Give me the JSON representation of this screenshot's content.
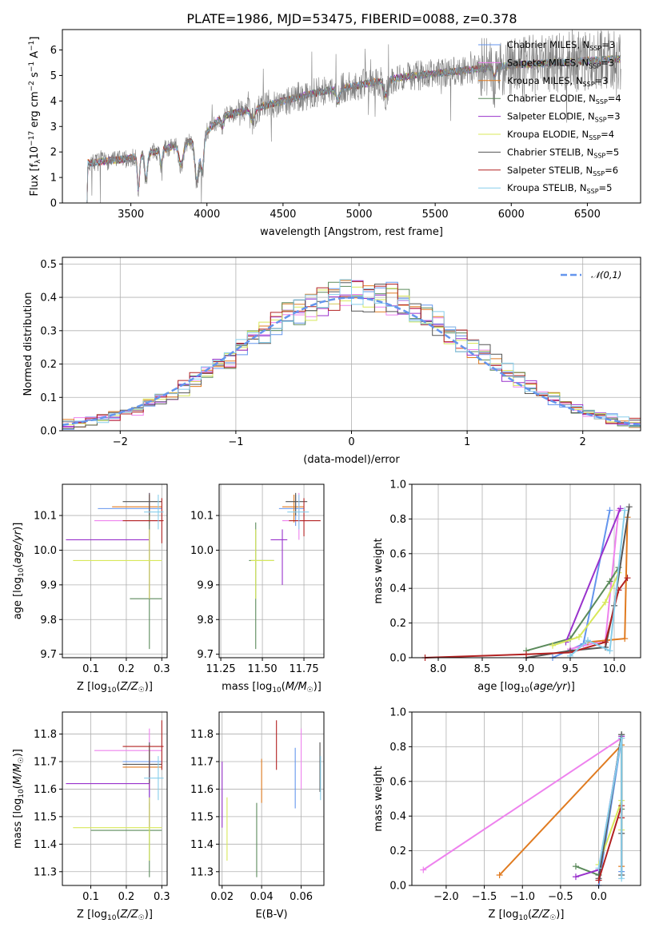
{
  "chart_data": [
    {
      "type": "line",
      "id": "spectrum",
      "title": "PLATE=1986, MJD=53475, FIBERID=0088, z=0.378",
      "xlabel": "wavelength [Angstrom, rest frame]",
      "ylabel": "Flux [f$_\\lambda$10$^{-17}$ erg cm$^{-2}$ s$^{-1}$ A$^{-1}$]",
      "ylabel_parts": [
        "Flux [f",
        "λ",
        "10",
        "−17",
        " erg cm",
        "−2",
        " s",
        "−1",
        " A",
        "−1",
        "]"
      ],
      "xlim": [
        3050,
        6850
      ],
      "ylim": [
        0,
        6.8
      ],
      "xticks": [
        3500,
        4000,
        4500,
        5000,
        5500,
        6000,
        6500
      ],
      "yticks": [
        0,
        1,
        2,
        3,
        4,
        5,
        6
      ],
      "grid": false,
      "legend_position": "top-right",
      "data_color": "#7f7f7f",
      "data_x_range": [
        3200,
        6720
      ],
      "series": [
        {
          "name": "Chabrier MILES, N$_{SSP}$=3",
          "label_main": "Chabrier MILES, N",
          "label_sub": "SSP",
          "label_tail": "=3",
          "color": "#6495ed"
        },
        {
          "name": "Salpeter MILES, N$_{SSP}$=3",
          "label_main": "Salpeter MILES, N",
          "label_sub": "SSP",
          "label_tail": "=3",
          "color": "#ee82ee"
        },
        {
          "name": "Kroupa MILES, N$_{SSP}$=3",
          "label_main": "Kroupa MILES, N",
          "label_sub": "SSP",
          "label_tail": "=3",
          "color": "#e07b20"
        },
        {
          "name": "Chabrier ELODIE, N$_{SSP}$=4",
          "label_main": "Chabrier ELODIE, N",
          "label_sub": "SSP",
          "label_tail": "=4",
          "color": "#5b8a5b"
        },
        {
          "name": "Salpeter ELODIE, N$_{SSP}$=3",
          "label_main": "Salpeter ELODIE, N",
          "label_sub": "SSP",
          "label_tail": "=3",
          "color": "#9932cc"
        },
        {
          "name": "Kroupa ELODIE, N$_{SSP}$=4",
          "label_main": "Kroupa ELODIE, N",
          "label_sub": "SSP",
          "label_tail": "=4",
          "color": "#d8e85a"
        },
        {
          "name": "Chabrier STELIB, N$_{SSP}$=5",
          "label_main": "Chabrier STELIB, N",
          "label_sub": "SSP",
          "label_tail": "=5",
          "color": "#555555"
        },
        {
          "name": "Salpeter STELIB, N$_{SSP}$=6",
          "label_main": "Salpeter STELIB, N",
          "label_sub": "SSP",
          "label_tail": "=6",
          "color": "#b22222"
        },
        {
          "name": "Kroupa STELIB, N$_{SSP}$=5",
          "label_main": "Kroupa STELIB, N",
          "label_sub": "SSP",
          "label_tail": "=5",
          "color": "#87ceeb"
        }
      ]
    },
    {
      "type": "histogram",
      "id": "residuals",
      "xlabel": "(data-model)/error",
      "ylabel": "Normed distribution",
      "xlim": [
        -2.5,
        2.5
      ],
      "ylim": [
        0,
        0.52
      ],
      "xticks": [
        -2,
        -1,
        0,
        1,
        2
      ],
      "xticklabels": [
        "−2",
        "−1",
        "0",
        "1",
        "2"
      ],
      "yticks": [
        0.0,
        0.1,
        0.2,
        0.3,
        0.4,
        0.5
      ],
      "yticklabels": [
        "0.0",
        "0.1",
        "0.2",
        "0.3",
        "0.4",
        "0.5"
      ],
      "grid": true,
      "bin_width": 0.1,
      "legend": {
        "label": "𝒩(0,1)",
        "position": "top-right",
        "style": "dashed",
        "color": "#6495ed"
      },
      "gaussian": {
        "mu": 0,
        "sigma": 1
      }
    },
    {
      "type": "scatter",
      "id": "z-age",
      "xlabel": "Z [log₁₀(Z/Z☉)]",
      "ylabel": "age  [log₁₀(age/yr)]",
      "xlim": [
        0.02,
        0.315
      ],
      "ylim": [
        9.69,
        10.19
      ],
      "xticks": [
        0.1,
        0.2,
        0.3
      ],
      "yticks": [
        9.7,
        9.8,
        9.9,
        10.0,
        10.1
      ],
      "yticklabels": [
        "9.7",
        "9.8",
        "9.9",
        "10.0",
        "10.1"
      ],
      "grid": true,
      "points": [
        {
          "color": "#6495ed",
          "x": 0.265,
          "xerr": [
            0.12,
            0.3
          ],
          "y": 10.12,
          "yerr": [
            10.07,
            10.16
          ]
        },
        {
          "color": "#ee82ee",
          "x": 0.265,
          "xerr": [
            0.11,
            0.3
          ],
          "y": 10.085,
          "yerr": [
            10.03,
            10.165
          ]
        },
        {
          "color": "#e07b20",
          "x": 0.265,
          "xerr": [
            0.16,
            0.3
          ],
          "y": 10.125,
          "yerr": [
            10.08,
            10.16
          ]
        },
        {
          "color": "#5b8a5b",
          "x": 0.265,
          "xerr": [
            0.21,
            0.3
          ],
          "y": 9.86,
          "yerr": [
            9.715,
            10.1
          ]
        },
        {
          "color": "#9932cc",
          "x": 0.265,
          "xerr": [
            0.03,
            0.265
          ],
          "y": 10.03,
          "yerr": [
            9.86,
            10.06
          ]
        },
        {
          "color": "#d8e85a",
          "x": 0.265,
          "xerr": [
            0.05,
            0.3
          ],
          "y": 9.97,
          "yerr": [
            9.86,
            10.06
          ]
        },
        {
          "color": "#555555",
          "x": 0.265,
          "xerr": [
            0.19,
            0.3
          ],
          "y": 10.14,
          "yerr": [
            10.1,
            10.165
          ]
        },
        {
          "color": "#b22222",
          "x": 0.3,
          "xerr": [
            0.19,
            0.305
          ],
          "y": 10.085,
          "yerr": [
            10.02,
            10.15
          ]
        },
        {
          "color": "#87ceeb",
          "x": 0.29,
          "xerr": [
            0.25,
            0.305
          ],
          "y": 10.11,
          "yerr": [
            10.06,
            10.16
          ]
        }
      ]
    },
    {
      "type": "scatter",
      "id": "mass-age",
      "xlabel": "mass [log₁₀(M/M☉)]",
      "ylabel": "",
      "xlim": [
        11.24,
        11.87
      ],
      "ylim": [
        9.69,
        10.19
      ],
      "xticks": [
        11.25,
        11.5,
        11.75
      ],
      "xticklabels": [
        "11.25",
        "11.50",
        "11.75"
      ],
      "yticks": [
        9.7,
        9.8,
        9.9,
        10.0,
        10.1
      ],
      "yticklabels": [
        "9.7",
        "9.8",
        "9.9",
        "10.0",
        "10.1"
      ],
      "grid": true,
      "points": [
        {
          "color": "#6495ed",
          "x": 11.7,
          "xerr": [
            11.6,
            11.75
          ],
          "y": 10.12,
          "yerr": [
            10.07,
            10.16
          ]
        },
        {
          "color": "#ee82ee",
          "x": 11.72,
          "xerr": [
            11.62,
            11.78
          ],
          "y": 10.085,
          "yerr": [
            10.03,
            10.165
          ]
        },
        {
          "color": "#e07b20",
          "x": 11.69,
          "xerr": [
            11.62,
            11.75
          ],
          "y": 10.125,
          "yerr": [
            10.08,
            10.16
          ]
        },
        {
          "color": "#5b8a5b",
          "x": 11.46,
          "xerr": [
            11.42,
            11.57
          ],
          "y": 9.97,
          "yerr": [
            9.715,
            10.08
          ]
        },
        {
          "color": "#9932cc",
          "x": 11.62,
          "xerr": [
            11.55,
            11.65
          ],
          "y": 10.03,
          "yerr": [
            9.9,
            10.06
          ]
        },
        {
          "color": "#d8e85a",
          "x": 11.46,
          "xerr": [
            11.43,
            11.57
          ],
          "y": 9.97,
          "yerr": [
            9.86,
            10.06
          ]
        },
        {
          "color": "#555555",
          "x": 11.7,
          "xerr": [
            11.64,
            11.77
          ],
          "y": 10.14,
          "yerr": [
            10.1,
            10.165
          ]
        },
        {
          "color": "#b22222",
          "x": 11.75,
          "xerr": [
            11.66,
            11.85
          ],
          "y": 10.085,
          "yerr": [
            10.04,
            10.15
          ]
        },
        {
          "color": "#87ceeb",
          "x": 11.72,
          "xerr": [
            11.65,
            11.78
          ],
          "y": 10.11,
          "yerr": [
            10.06,
            10.16
          ]
        }
      ]
    },
    {
      "type": "line",
      "id": "age-massweight",
      "xlabel": "age  [log₁₀(age/yr)]",
      "ylabel": "mass weight",
      "xlim": [
        7.7,
        10.3
      ],
      "ylim": [
        0,
        1.0
      ],
      "xticks": [
        8.0,
        8.5,
        9.0,
        9.5,
        10.0
      ],
      "xticklabels": [
        "8.0",
        "8.5",
        "9.0",
        "9.5",
        "10.0"
      ],
      "yticks": [
        0.0,
        0.2,
        0.4,
        0.6,
        0.8,
        1.0
      ],
      "yticklabels": [
        "0.0",
        "0.2",
        "0.4",
        "0.6",
        "0.8",
        "1.0"
      ],
      "grid": true,
      "series": [
        {
          "color": "#6495ed",
          "x": [
            9.3,
            9.65,
            9.95
          ],
          "y": [
            0.0,
            0.08,
            0.85
          ]
        },
        {
          "color": "#ee82ee",
          "x": [
            9.5,
            9.9,
            10.05
          ],
          "y": [
            0.05,
            0.1,
            0.85
          ]
        },
        {
          "color": "#e07b20",
          "x": [
            9.7,
            10.12,
            10.15
          ],
          "y": [
            0.09,
            0.11,
            0.81
          ]
        },
        {
          "color": "#5b8a5b",
          "x": [
            9.0,
            9.5,
            9.95,
            10.05
          ],
          "y": [
            0.04,
            0.11,
            0.44,
            0.52
          ]
        },
        {
          "color": "#9932cc",
          "x": [
            9.45,
            10.07
          ],
          "y": [
            0.09,
            0.86
          ]
        },
        {
          "color": "#d8e85a",
          "x": [
            9.3,
            9.6,
            9.9,
            10.05
          ],
          "y": [
            0.07,
            0.12,
            0.32,
            0.49
          ]
        },
        {
          "color": "#555555",
          "x": [
            9.0,
            9.5,
            9.9,
            10.0,
            10.17
          ],
          "y": [
            0.0,
            0.04,
            0.06,
            0.3,
            0.87
          ]
        },
        {
          "color": "#b22222",
          "x": [
            7.85,
            9.0,
            9.5,
            9.9,
            10.05,
            10.15
          ],
          "y": [
            0.0,
            0.02,
            0.03,
            0.09,
            0.39,
            0.46
          ]
        },
        {
          "color": "#87ceeb",
          "x": [
            9.5,
            9.7,
            9.95,
            10.12
          ],
          "y": [
            0.01,
            0.1,
            0.04,
            0.85
          ]
        }
      ]
    },
    {
      "type": "scatter",
      "id": "z-mass",
      "xlabel": "Z [log₁₀(Z/Z☉)]",
      "ylabel": "mass [log₁₀(M/M☉)]",
      "xlim": [
        0.02,
        0.315
      ],
      "ylim": [
        11.25,
        11.88
      ],
      "xticks": [
        0.1,
        0.2,
        0.3
      ],
      "yticks": [
        11.3,
        11.4,
        11.5,
        11.6,
        11.7,
        11.8
      ],
      "grid": true,
      "points": [
        {
          "color": "#6495ed",
          "x": 0.265,
          "xerr": [
            0.19,
            0.3
          ],
          "y": 11.7,
          "yerr": [
            11.53,
            11.76
          ]
        },
        {
          "color": "#ee82ee",
          "x": 0.265,
          "xerr": [
            0.11,
            0.3
          ],
          "y": 11.74,
          "yerr": [
            11.6,
            11.82
          ]
        },
        {
          "color": "#e07b20",
          "x": 0.265,
          "xerr": [
            0.19,
            0.3
          ],
          "y": 11.68,
          "yerr": [
            11.6,
            11.76
          ]
        },
        {
          "color": "#5b8a5b",
          "x": 0.265,
          "xerr": [
            0.1,
            0.3
          ],
          "y": 11.45,
          "yerr": [
            11.28,
            11.55
          ]
        },
        {
          "color": "#9932cc",
          "x": 0.265,
          "xerr": [
            0.03,
            0.265
          ],
          "y": 11.62,
          "yerr": [
            11.46,
            11.7
          ]
        },
        {
          "color": "#d8e85a",
          "x": 0.265,
          "xerr": [
            0.05,
            0.3
          ],
          "y": 11.46,
          "yerr": [
            11.34,
            11.57
          ]
        },
        {
          "color": "#555555",
          "x": 0.265,
          "xerr": [
            0.19,
            0.3
          ],
          "y": 11.69,
          "yerr": [
            11.62,
            11.77
          ]
        },
        {
          "color": "#b22222",
          "x": 0.3,
          "xerr": [
            0.19,
            0.305
          ],
          "y": 11.755,
          "yerr": [
            11.67,
            11.85
          ]
        },
        {
          "color": "#87ceeb",
          "x": 0.29,
          "xerr": [
            0.25,
            0.305
          ],
          "y": 11.64,
          "yerr": [
            11.56,
            11.72
          ]
        }
      ]
    },
    {
      "type": "scatter",
      "id": "ebv-mass",
      "xlabel": "E(B-V)",
      "ylabel": "",
      "xlim": [
        0.0185,
        0.0715
      ],
      "ylim": [
        11.25,
        11.88
      ],
      "xticks": [
        0.02,
        0.04,
        0.06
      ],
      "xticklabels": [
        "0.02",
        "0.04",
        "0.06"
      ],
      "yticks": [
        11.3,
        11.4,
        11.5,
        11.6,
        11.7,
        11.8
      ],
      "grid": true,
      "points": [
        {
          "color": "#9932cc",
          "x": 0.02,
          "y": 11.6,
          "yerr": [
            11.46,
            11.7
          ]
        },
        {
          "color": "#d8e85a",
          "x": 0.0225,
          "y": 11.46,
          "yerr": [
            11.34,
            11.57
          ]
        },
        {
          "color": "#5b8a5b",
          "x": 0.0375,
          "y": 11.41,
          "yerr": [
            11.28,
            11.55
          ]
        },
        {
          "color": "#e07b20",
          "x": 0.04,
          "y": 11.63,
          "yerr": [
            11.55,
            11.71
          ]
        },
        {
          "color": "#b22222",
          "x": 0.0475,
          "y": 11.76,
          "yerr": [
            11.67,
            11.85
          ]
        },
        {
          "color": "#6495ed",
          "x": 0.057,
          "y": 11.64,
          "yerr": [
            11.53,
            11.75
          ]
        },
        {
          "color": "#ee82ee",
          "x": 0.06,
          "y": 11.74,
          "yerr": [
            11.6,
            11.82
          ]
        },
        {
          "color": "#555555",
          "x": 0.0695,
          "y": 11.68,
          "yerr": [
            11.59,
            11.77
          ]
        },
        {
          "color": "#87ceeb",
          "x": 0.0698,
          "y": 11.64,
          "yerr": [
            11.56,
            11.72
          ]
        }
      ]
    },
    {
      "type": "line",
      "id": "z-massweight",
      "xlabel": "Z [log₁₀(Z/Z☉)]",
      "ylabel": "mass weight",
      "xlim": [
        -2.45,
        0.55
      ],
      "ylim": [
        0,
        1.0
      ],
      "xticks": [
        -2.0,
        -1.5,
        -1.0,
        -0.5,
        0.0
      ],
      "xticklabels": [
        "−2.0",
        "−1.5",
        "−1.0",
        "−0.5",
        "0.0"
      ],
      "yticks": [
        0.0,
        0.2,
        0.4,
        0.6,
        0.8,
        1.0
      ],
      "yticklabels": [
        "0.0",
        "0.2",
        "0.4",
        "0.6",
        "0.8",
        "1.0"
      ],
      "grid": true,
      "series": [
        {
          "color": "#6495ed",
          "x": [
            0.0,
            0.3,
            0.3
          ],
          "y": [
            0.0,
            0.85,
            0.08
          ]
        },
        {
          "color": "#ee82ee",
          "x": [
            -2.3,
            0.3
          ],
          "y": [
            0.09,
            0.85
          ]
        },
        {
          "color": "#e07b20",
          "x": [
            -1.3,
            0.3,
            0.3
          ],
          "y": [
            0.06,
            0.81,
            0.11
          ]
        },
        {
          "color": "#5b8a5b",
          "x": [
            -0.3,
            0.0,
            0.3,
            0.3
          ],
          "y": [
            0.11,
            0.06,
            0.87,
            0.44
          ]
        },
        {
          "color": "#9932cc",
          "x": [
            -0.3,
            0.0,
            0.3
          ],
          "y": [
            0.05,
            0.09,
            0.86
          ]
        },
        {
          "color": "#d8e85a",
          "x": [
            0.0,
            0.3,
            0.3
          ],
          "y": [
            0.12,
            0.49,
            0.32
          ]
        },
        {
          "color": "#555555",
          "x": [
            0.0,
            0.3,
            0.3,
            0.3
          ],
          "y": [
            0.04,
            0.87,
            0.3,
            0.06
          ]
        },
        {
          "color": "#b22222",
          "x": [
            0.0,
            0.3,
            0.3
          ],
          "y": [
            0.03,
            0.46,
            0.39
          ]
        },
        {
          "color": "#87ceeb",
          "x": [
            0.0,
            0.3,
            0.3
          ],
          "y": [
            0.1,
            0.85,
            0.04
          ]
        }
      ]
    }
  ]
}
